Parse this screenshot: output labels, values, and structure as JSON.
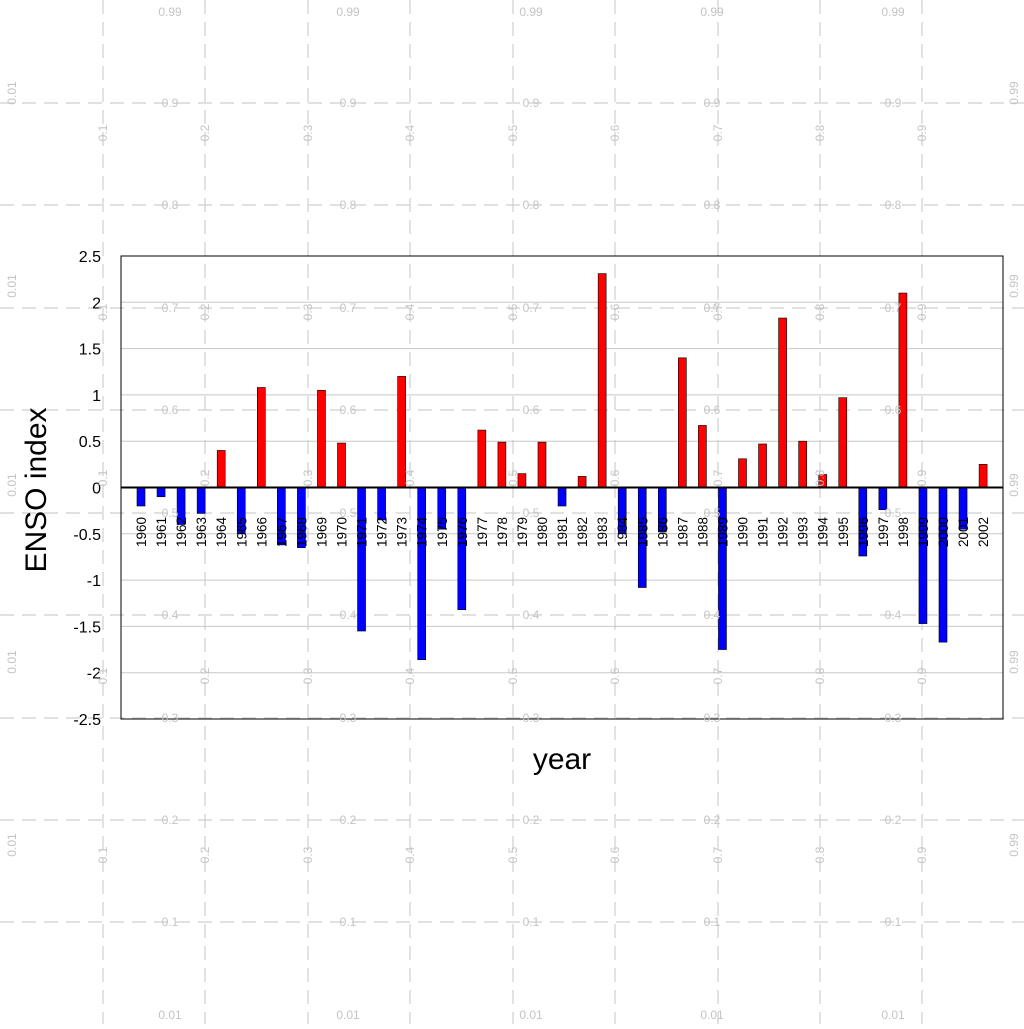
{
  "chart_data": {
    "type": "bar",
    "xlabel": "year",
    "ylabel": "ENSO index",
    "ylim": [
      -2.5,
      2.5
    ],
    "yticks": [
      "2.5",
      "2",
      "1.5",
      "1",
      "0.5",
      "0",
      "-0.5",
      "-1",
      "-1.5",
      "-2",
      "-2.5"
    ],
    "grid": true,
    "positive_color": "#ff0000",
    "negative_color": "#0000ff",
    "categories": [
      "1960",
      "1961",
      "1962",
      "1963",
      "1964",
      "1965",
      "1966",
      "1967",
      "1968",
      "1969",
      "1970",
      "1971",
      "1972",
      "1973",
      "1974",
      "1975",
      "1976",
      "1977",
      "1978",
      "1979",
      "1980",
      "1981",
      "1982",
      "1983",
      "1984",
      "1985",
      "1986",
      "1987",
      "1988",
      "1989",
      "1990",
      "1991",
      "1992",
      "1993",
      "1994",
      "1995",
      "1996",
      "1997",
      "1998",
      "1999",
      "2000",
      "2001",
      "2002"
    ],
    "values": [
      -0.2,
      -0.1,
      -0.4,
      -0.28,
      0.4,
      -0.5,
      1.08,
      -0.62,
      -0.65,
      1.05,
      0.48,
      -1.55,
      -0.35,
      1.2,
      -1.86,
      -0.45,
      -1.32,
      0.62,
      0.49,
      0.15,
      0.49,
      -0.2,
      0.12,
      2.31,
      -0.5,
      -1.08,
      -0.48,
      1.4,
      0.67,
      -1.75,
      0.31,
      0.47,
      1.83,
      0.5,
      0.14,
      0.97,
      -0.74,
      -0.24,
      2.1,
      -1.47,
      -1.67,
      -0.45,
      0.25
    ]
  },
  "overlay": {
    "color": "#c4c4c4",
    "left_column": [
      "0.01",
      "0.01",
      "0.01",
      "0.01",
      "0.01"
    ],
    "right_column": [
      "0.99",
      "0.99",
      "0.99",
      "0.99",
      "0.99"
    ],
    "top_row": [
      "0.99",
      "0.99",
      "0.99",
      "0.99",
      "0.99"
    ],
    "bottom_row": [
      "0.01",
      "0.01",
      "0.01",
      "0.01",
      "0.01"
    ],
    "rows": [
      [
        "0.9",
        "0.9",
        "0.9",
        "0.9",
        "0.9"
      ],
      [
        "0.8",
        "0.8",
        "0.8",
        "0.8",
        "0.8"
      ],
      [
        "0.7",
        "0.7",
        "0.7",
        "0.7",
        "0.7"
      ],
      [
        "0.6",
        "0.6",
        "0.6",
        "0.6",
        "0.6"
      ],
      [
        "0.5",
        "0.5",
        "0.5",
        "0.5",
        "0.5"
      ],
      [
        "0.4",
        "0.4",
        "0.4",
        "0.4",
        "0.4"
      ],
      [
        "0.3",
        "0.3",
        "0.3",
        "0.3",
        "0.3"
      ],
      [
        "0.2",
        "0.2",
        "0.2",
        "0.2",
        "0.2"
      ],
      [
        "0.1",
        "0.1",
        "0.1",
        "0.1",
        "0.1"
      ]
    ],
    "columns": [
      "0.1",
      "0.2",
      "0.3",
      "0.4",
      "0.5",
      "0.6",
      "0.7",
      "0.8",
      "0.9"
    ]
  }
}
